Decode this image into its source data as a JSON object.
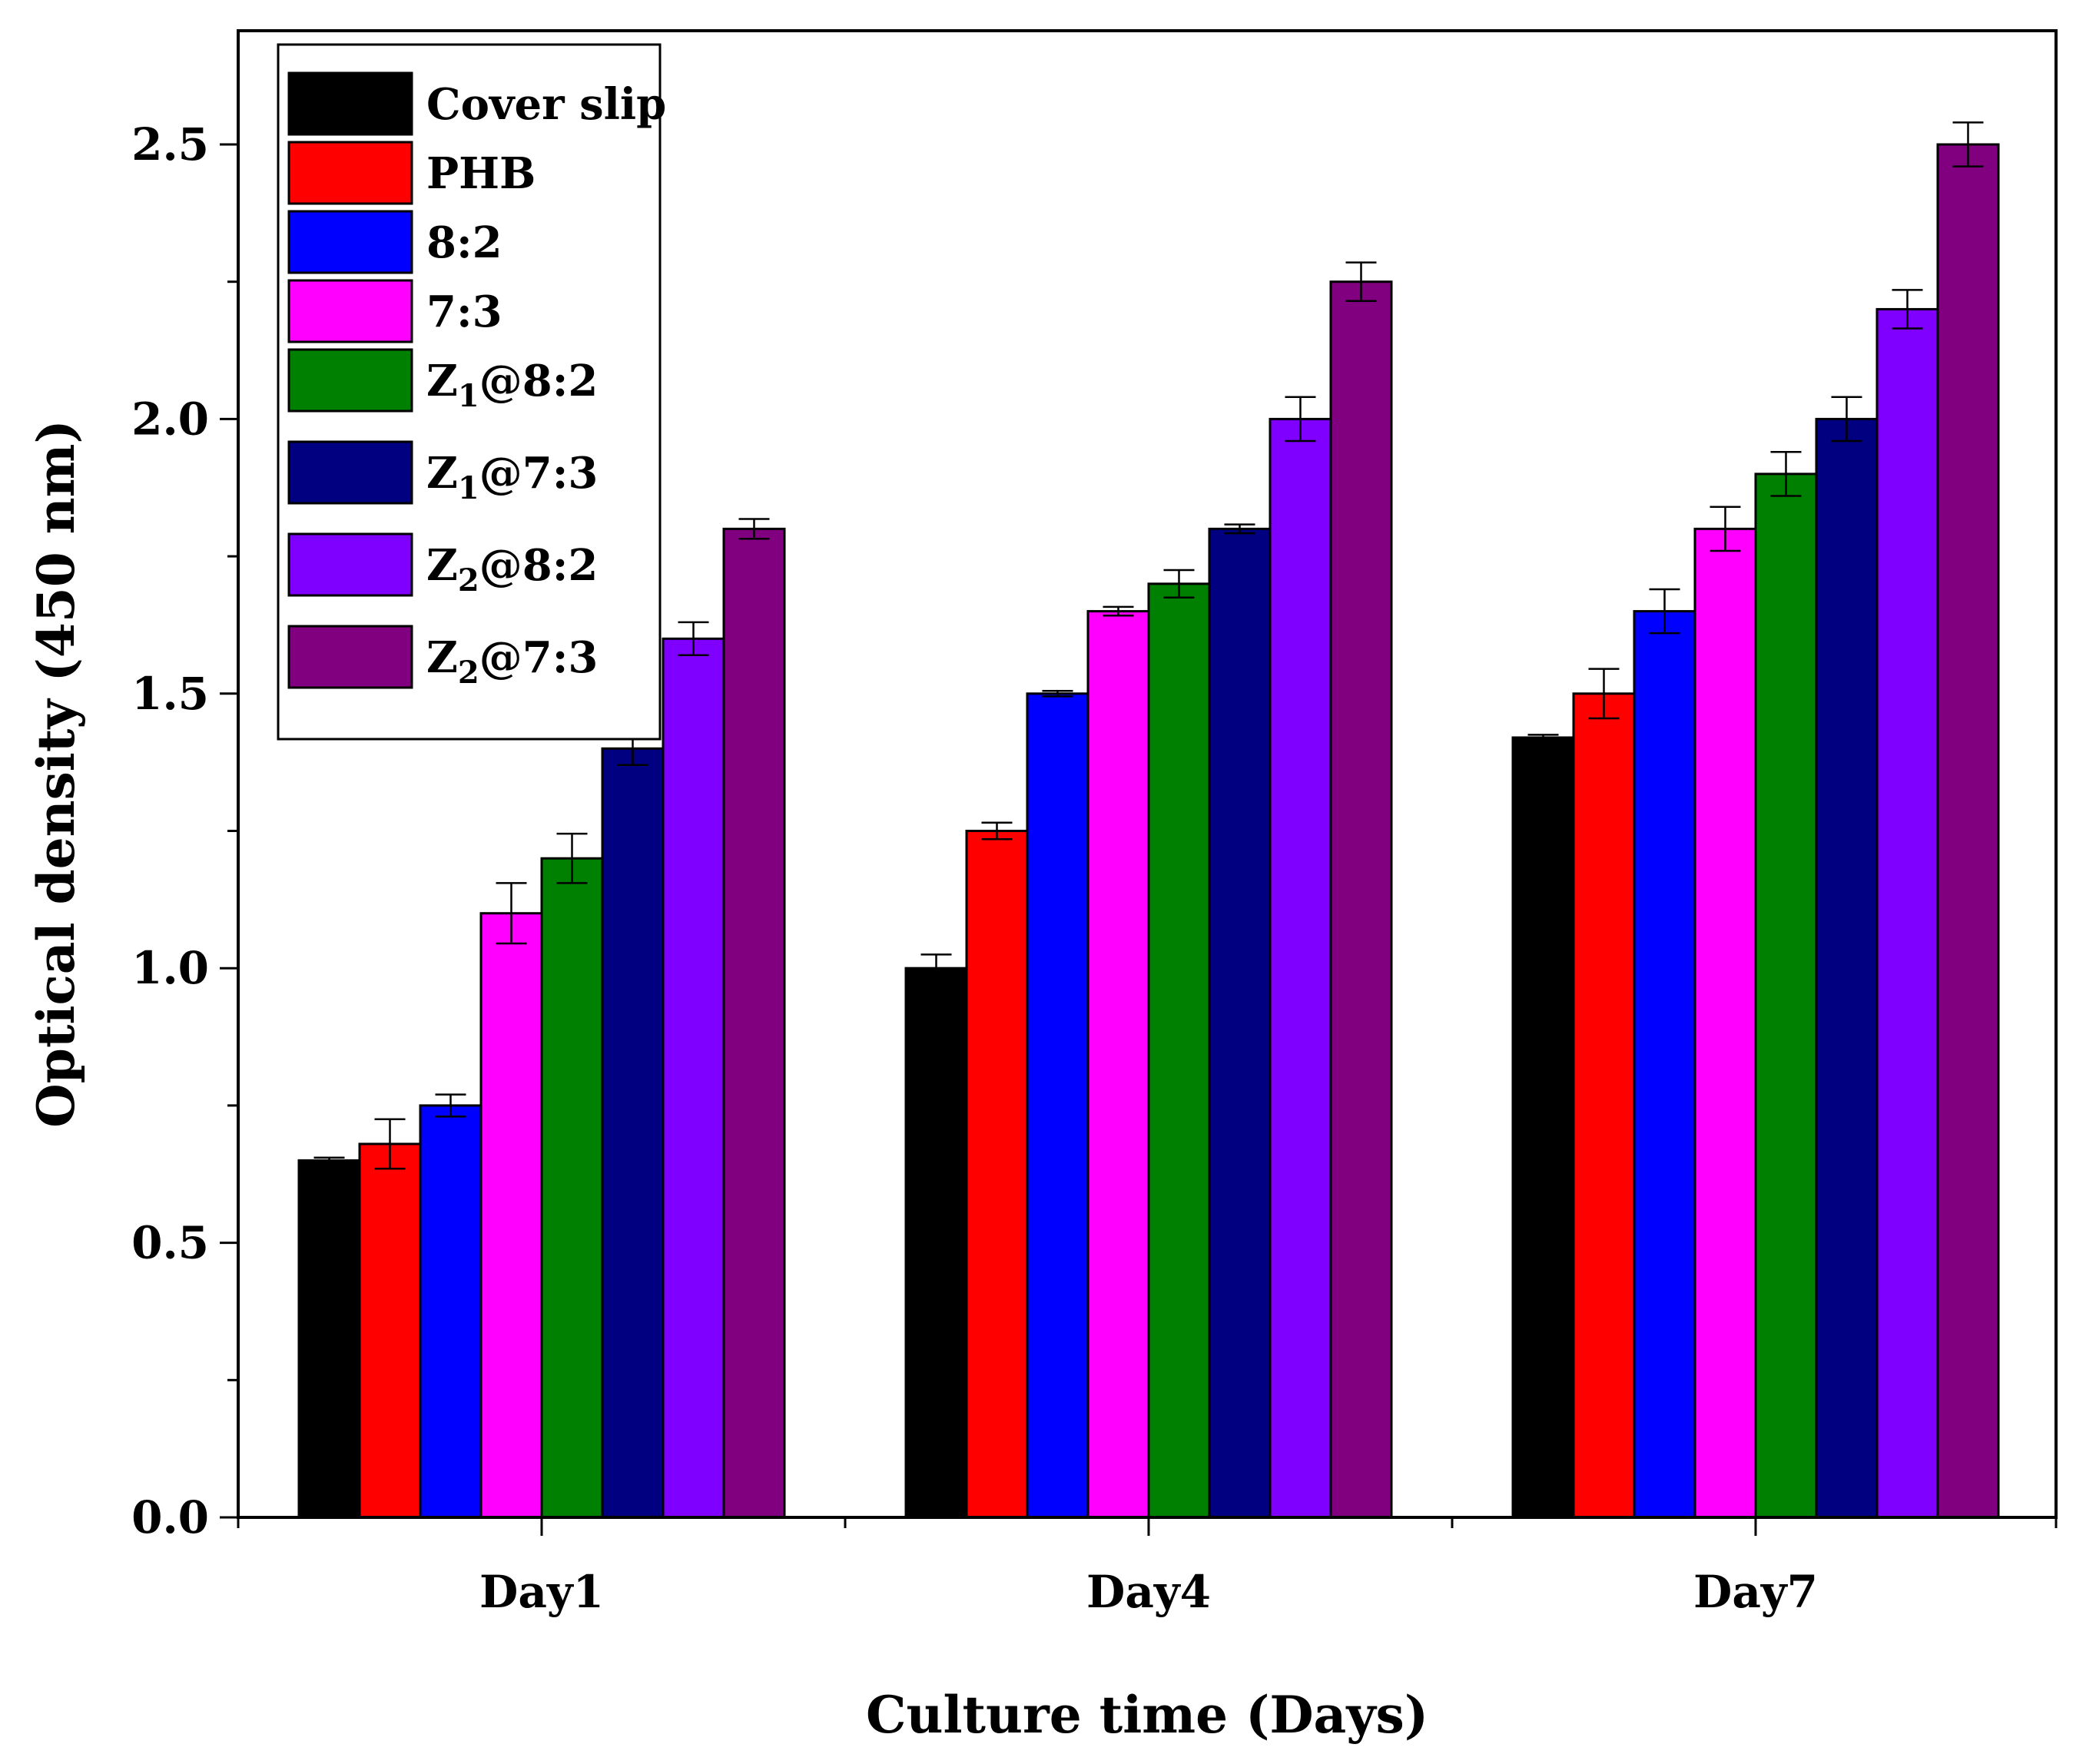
{
  "chart_data": {
    "type": "bar",
    "title": "",
    "xlabel": "Culture time (Days)",
    "ylabel": "Optical density (450 nm)",
    "ylim": [
      0,
      2.7
    ],
    "yticks": [
      "0.0",
      "0.5",
      "1.0",
      "1.5",
      "2.0",
      "2.5"
    ],
    "categories": [
      "Day1",
      "Day4",
      "Day7"
    ],
    "legend_position": "top-left",
    "series": [
      {
        "name": "Cover slip",
        "legend": [
          "Cover slip",
          "",
          ""
        ],
        "color": "#000000",
        "values": [
          0.65,
          1.0,
          1.42
        ],
        "errors": [
          0.005,
          0.025,
          0.005
        ]
      },
      {
        "name": "PHB",
        "legend": [
          "PHB",
          "",
          ""
        ],
        "color": "#ff0000",
        "values": [
          0.68,
          1.25,
          1.5
        ],
        "errors": [
          0.045,
          0.015,
          0.045
        ]
      },
      {
        "name": "8:2",
        "legend": [
          "8:2",
          "",
          ""
        ],
        "color": "#0000ff",
        "values": [
          0.75,
          1.5,
          1.65
        ],
        "errors": [
          0.02,
          0.005,
          0.04
        ]
      },
      {
        "name": "7:3",
        "legend": [
          "7:3",
          "",
          ""
        ],
        "color": "#ff00ff",
        "values": [
          1.1,
          1.65,
          1.8
        ],
        "errors": [
          0.055,
          0.008,
          0.04
        ]
      },
      {
        "name": "Z1@8:2",
        "legend": [
          "Z",
          "1",
          "@8:2"
        ],
        "color": "#008000",
        "values": [
          1.2,
          1.7,
          1.9
        ],
        "errors": [
          0.045,
          0.025,
          0.04
        ]
      },
      {
        "name": "Z1@7:3",
        "legend": [
          "Z",
          "1",
          "@7:3"
        ],
        "color": "#000080",
        "values": [
          1.4,
          1.8,
          2.0
        ],
        "errors": [
          0.03,
          0.008,
          0.04
        ]
      },
      {
        "name": "Z2@8:2",
        "legend": [
          "Z",
          "2",
          "@8:2"
        ],
        "color": "#8000ff",
        "values": [
          1.6,
          2.0,
          2.2
        ],
        "errors": [
          0.03,
          0.04,
          0.035
        ]
      },
      {
        "name": "Z2@7:3",
        "legend": [
          "Z",
          "2",
          "@7:3"
        ],
        "color": "#800080",
        "values": [
          1.8,
          2.25,
          2.5
        ],
        "errors": [
          0.018,
          0.035,
          0.04
        ]
      }
    ]
  }
}
